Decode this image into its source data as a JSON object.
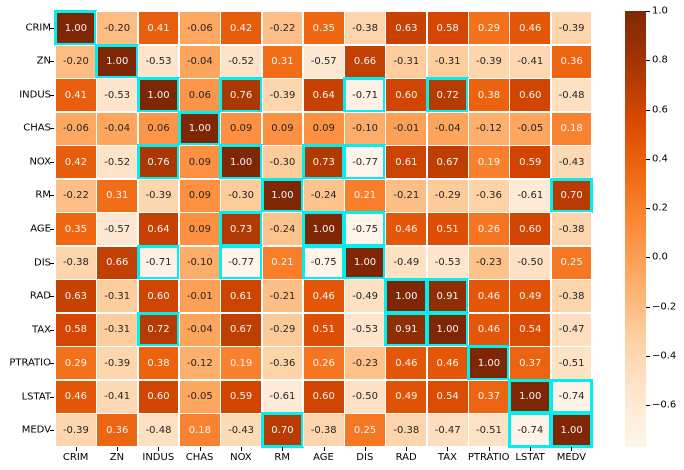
{
  "chart_data": {
    "type": "heatmap",
    "title": "",
    "xlabel": "",
    "ylabel": "",
    "labels": [
      "CRIM",
      "ZN",
      "INDUS",
      "CHAS",
      "NOX",
      "RM",
      "AGE",
      "DIS",
      "RAD",
      "TAX",
      "PTRATIO",
      "LSTAT",
      "MEDV"
    ],
    "matrix": [
      [
        1.0,
        -0.2,
        0.41,
        -0.06,
        0.42,
        -0.22,
        0.35,
        -0.38,
        0.63,
        0.58,
        0.29,
        0.46,
        -0.39
      ],
      [
        -0.2,
        1.0,
        -0.53,
        -0.04,
        -0.52,
        0.31,
        -0.57,
        0.66,
        -0.31,
        -0.31,
        -0.39,
        -0.41,
        0.36
      ],
      [
        0.41,
        -0.53,
        1.0,
        0.06,
        0.76,
        -0.39,
        0.64,
        -0.71,
        0.6,
        0.72,
        0.38,
        0.6,
        -0.48
      ],
      [
        -0.06,
        -0.04,
        0.06,
        1.0,
        0.09,
        0.09,
        0.09,
        -0.1,
        -0.01,
        -0.04,
        -0.12,
        -0.05,
        0.18
      ],
      [
        0.42,
        -0.52,
        0.76,
        0.09,
        1.0,
        -0.3,
        0.73,
        -0.77,
        0.61,
        0.67,
        0.19,
        0.59,
        -0.43
      ],
      [
        -0.22,
        0.31,
        -0.39,
        0.09,
        -0.3,
        1.0,
        -0.24,
        0.21,
        -0.21,
        -0.29,
        -0.36,
        -0.61,
        0.7
      ],
      [
        0.35,
        -0.57,
        0.64,
        0.09,
        0.73,
        -0.24,
        1.0,
        -0.75,
        0.46,
        0.51,
        0.26,
        0.6,
        -0.38
      ],
      [
        -0.38,
        0.66,
        -0.71,
        -0.1,
        -0.77,
        0.21,
        -0.75,
        1.0,
        -0.49,
        -0.53,
        -0.23,
        -0.5,
        0.25
      ],
      [
        0.63,
        -0.31,
        0.6,
        -0.01,
        0.61,
        -0.21,
        0.46,
        -0.49,
        1.0,
        0.91,
        0.46,
        0.49,
        -0.38
      ],
      [
        0.58,
        -0.31,
        0.72,
        -0.04,
        0.67,
        -0.29,
        0.51,
        -0.53,
        0.91,
        1.0,
        0.46,
        0.54,
        -0.47
      ],
      [
        0.29,
        -0.39,
        0.38,
        -0.12,
        0.19,
        -0.36,
        0.26,
        -0.23,
        0.46,
        0.46,
        1.0,
        0.37,
        -0.51
      ],
      [
        0.46,
        -0.41,
        0.6,
        -0.05,
        0.59,
        -0.61,
        0.6,
        -0.5,
        0.49,
        0.54,
        0.37,
        1.0,
        -0.74
      ],
      [
        -0.39,
        0.36,
        -0.48,
        0.18,
        -0.43,
        0.7,
        -0.38,
        0.25,
        -0.38,
        -0.47,
        -0.51,
        -0.74,
        1.0
      ]
    ],
    "highlighted_cells_abs_threshold": 0.7,
    "highlight_color": "#00f0f0",
    "colormap": "Oranges",
    "vmin": -0.77,
    "vmax": 1.0,
    "colorbar_ticks": [
      "1.0",
      "0.8",
      "0.6",
      "0.4",
      "0.2",
      "0.0",
      "−0.2",
      "−0.4",
      "−0.6"
    ],
    "colorbar_tick_values": [
      1.0,
      0.8,
      0.6,
      0.4,
      0.2,
      0.0,
      -0.2,
      -0.4,
      -0.6
    ],
    "grid": false,
    "legend_position": "colorbar-right",
    "annotation_format": "0.00"
  }
}
